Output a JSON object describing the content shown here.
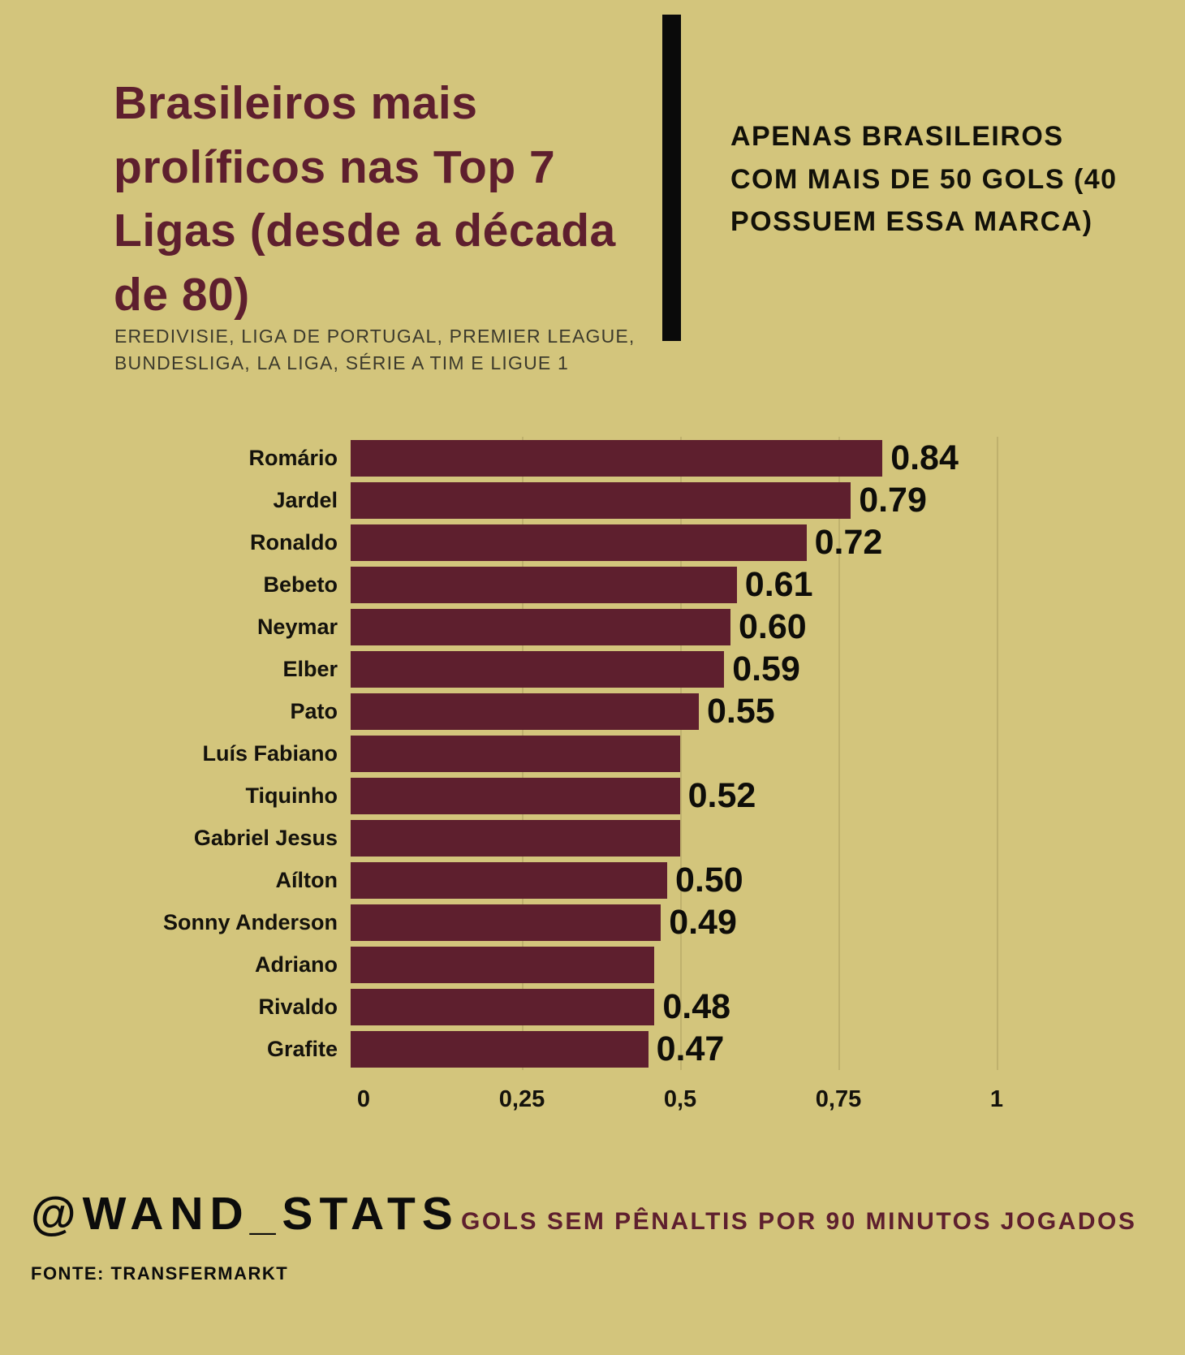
{
  "header": {
    "title": "Brasileiros mais prolíficos nas Top 7 Ligas (desde a década de 80)",
    "subtitle": "EREDIVISIE, LIGA DE PORTUGAL, PREMIER LEAGUE, BUNDESLIGA, LA LIGA, SÉRIE A TIM E LIGUE 1",
    "note": "APENAS BRASILEIROS COM MAIS DE 50 GOLS (40 POSSUEM ESSA MARCA)"
  },
  "chart_data": {
    "type": "bar",
    "orientation": "horizontal",
    "title": "Brasileiros mais prolíficos nas Top 7 Ligas (desde a década de 80)",
    "xlabel": "GOLS SEM PÊNALTIS POR 90 MINUTOS JOGADOS",
    "xlim": [
      0,
      1
    ],
    "x_ticks": [
      "0",
      "0,25",
      "0,5",
      "0,75",
      "1"
    ],
    "x_tick_values": [
      0,
      0.25,
      0.5,
      0.75,
      1
    ],
    "grid": true,
    "bar_color": "#5e1f2e",
    "categories": [
      "Romário",
      "Jardel",
      "Ronaldo",
      "Bebeto",
      "Neymar",
      "Elber",
      "Pato",
      "Luís Fabiano",
      "Tiquinho",
      "Gabriel Jesus",
      "Aílton",
      "Sonny Anderson",
      "Adriano",
      "Rivaldo",
      "Grafite"
    ],
    "values": [
      0.84,
      0.79,
      0.72,
      0.61,
      0.6,
      0.59,
      0.55,
      0.52,
      0.52,
      0.52,
      0.5,
      0.49,
      0.48,
      0.48,
      0.47
    ],
    "data_labels": [
      "0.84",
      "0.79",
      "0.72",
      "0.61",
      "0.60",
      "0.59",
      "0.55",
      "",
      "0.52",
      "",
      "0.50",
      "0.49",
      "",
      "0.48",
      "0.47"
    ]
  },
  "footer": {
    "handle": "@WAND_STATS",
    "caption": "GOLS SEM PÊNALTIS POR 90 MINUTOS JOGADOS",
    "source": "FONTE: TRANSFERMARKT"
  },
  "colors": {
    "background": "#d3c57c",
    "accent": "#5e1f2e",
    "divider": "#0a0a0a",
    "text": "#121109"
  }
}
